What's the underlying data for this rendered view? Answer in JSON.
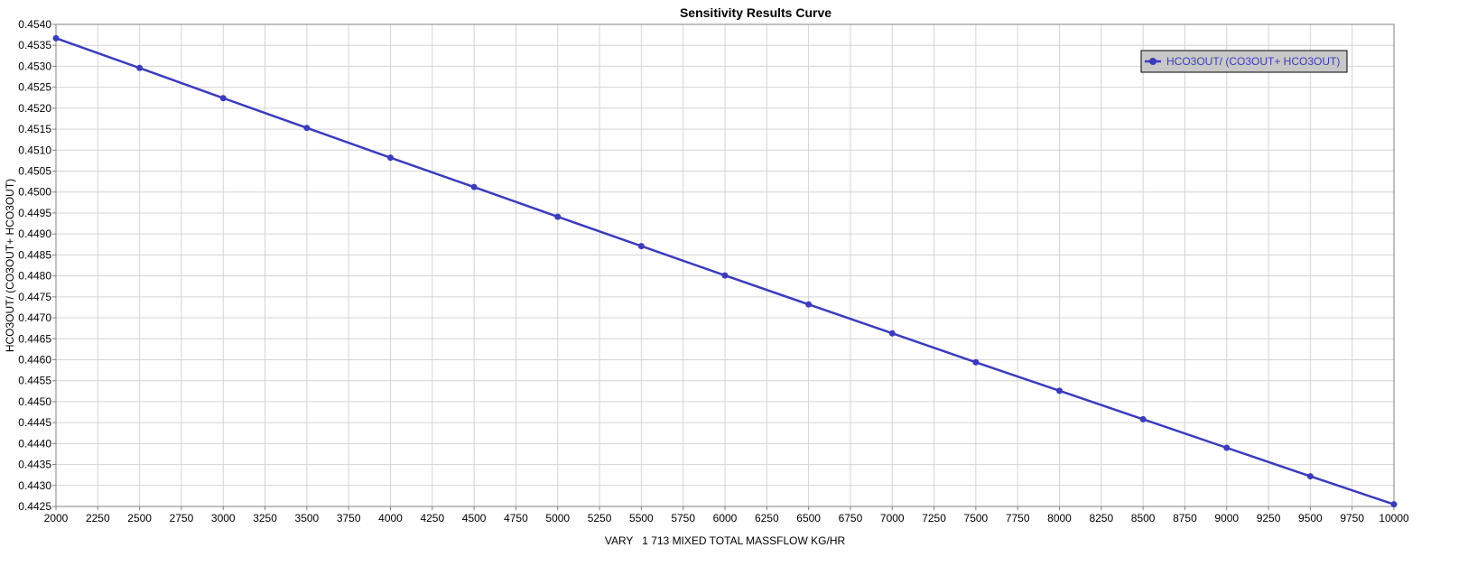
{
  "chart_data": {
    "type": "line",
    "title": "Sensitivity Results Curve",
    "xlabel": "VARY   1 713 MIXED TOTAL MASSFLOW KG/HR",
    "ylabel": "HCO3OUT/ (CO3OUT+ HCO3OUT)",
    "xlim": [
      2000,
      10000
    ],
    "ylim": [
      0.4425,
      0.454
    ],
    "x_ticks": [
      2000,
      2250,
      2500,
      2750,
      3000,
      3250,
      3500,
      3750,
      4000,
      4250,
      4500,
      4750,
      5000,
      5250,
      5500,
      5750,
      6000,
      6250,
      6500,
      6750,
      7000,
      7250,
      7500,
      7750,
      8000,
      8250,
      8500,
      8750,
      9000,
      9250,
      9500,
      9750,
      10000
    ],
    "y_ticks": [
      "0.4425",
      "0.4430",
      "0.4435",
      "0.4440",
      "0.4445",
      "0.4450",
      "0.4455",
      "0.4460",
      "0.4465",
      "0.4470",
      "0.4475",
      "0.4480",
      "0.4485",
      "0.4490",
      "0.4495",
      "0.4500",
      "0.4505",
      "0.4510",
      "0.4515",
      "0.4520",
      "0.4525",
      "0.4530",
      "0.4535",
      "0.4540"
    ],
    "grid": true,
    "legend_position": "top-right",
    "series": [
      {
        "name": "HCO3OUT/ (CO3OUT+ HCO3OUT)",
        "color": "#3b3bc0",
        "x": [
          2000,
          2500,
          3000,
          3500,
          4000,
          4500,
          5000,
          5500,
          6000,
          6500,
          7000,
          7500,
          8000,
          8500,
          9000,
          9500,
          10000
        ],
        "y": [
          0.45367,
          0.45296,
          0.45224,
          0.45153,
          0.45082,
          0.45012,
          0.44941,
          0.44871,
          0.44801,
          0.44732,
          0.44663,
          0.44594,
          0.44526,
          0.44458,
          0.4439,
          0.44322,
          0.44255
        ]
      }
    ]
  }
}
